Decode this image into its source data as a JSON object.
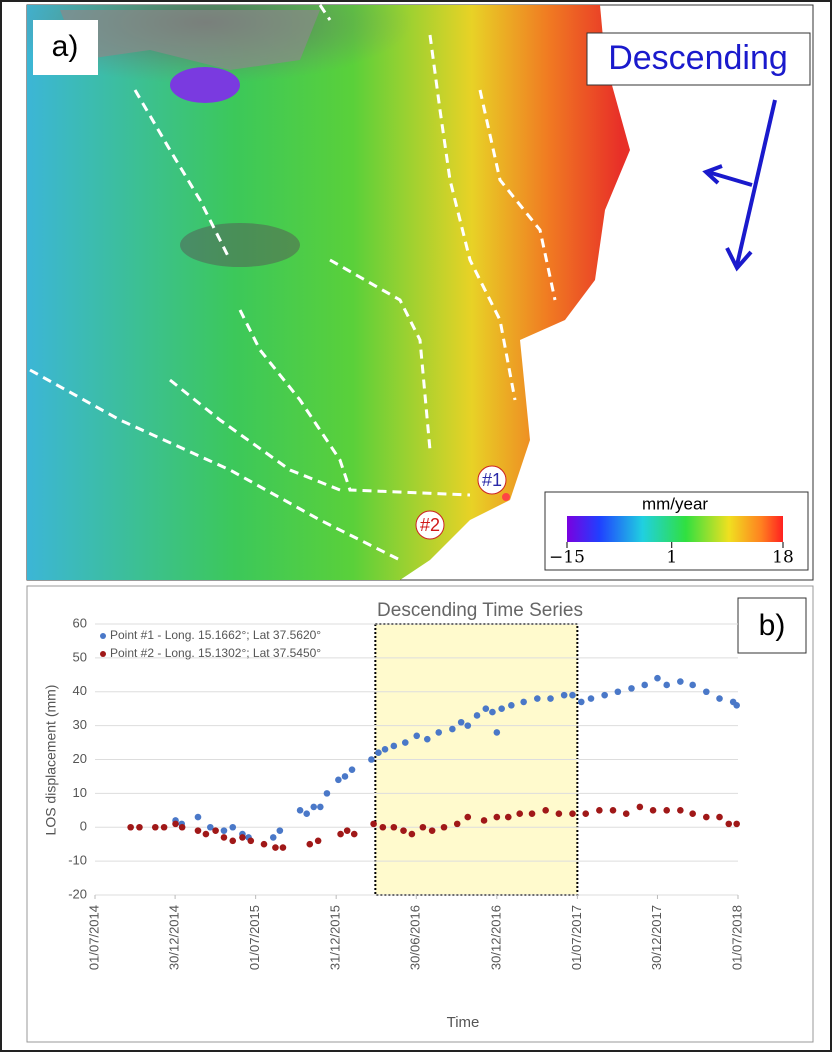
{
  "map": {
    "label": "a)",
    "orbit": "Descending",
    "points": [
      "#1",
      "#2"
    ],
    "colorbar": {
      "title": "mm/year",
      "lim": [
        -15,
        18
      ],
      "ticks": [
        {
          "value": -15,
          "label": "−15"
        },
        1,
        18
      ]
    }
  },
  "chart_data": {
    "type": "scatter",
    "title": "Descending Time Series",
    "panel_label": "b)",
    "x_label": "Time",
    "y_label": "LOS displacement (mm)",
    "xlim": [
      "2014-07-01",
      "2018-07-01"
    ],
    "xticks": [
      {
        "value": "2014-07-01",
        "label": "01/07/2014"
      },
      {
        "value": "2014-12-30",
        "label": "30/12/2014"
      },
      {
        "value": "2015-07-01",
        "label": "01/07/2015"
      },
      {
        "value": "2015-12-31",
        "label": "31/12/2015"
      },
      {
        "value": "2016-06-30",
        "label": "30/06/2016"
      },
      {
        "value": "2016-12-30",
        "label": "30/12/2016"
      },
      {
        "value": "2017-07-01",
        "label": "01/07/2017"
      },
      {
        "value": "2017-12-30",
        "label": "30/12/2017"
      },
      {
        "value": "2018-07-01",
        "label": "01/07/2018"
      }
    ],
    "ylim": [
      -20,
      60
    ],
    "yticks": [
      -20,
      -10,
      0,
      10,
      20,
      30,
      40,
      50,
      60
    ],
    "grid": true,
    "highlight": [
      "2016-03-29",
      "2017-07-01"
    ],
    "highlight_color": "#fffacd",
    "legend": "upper left",
    "series": [
      {
        "name": "Point #1 - Long. 15.1662°; Lat 37.5620°",
        "color": "#4a78c8",
        "x": [
          "2014-12-31",
          "2015-01-14",
          "2015-02-20",
          "2015-03-20",
          "2015-04-20",
          "2015-05-10",
          "2015-06-01",
          "2015-06-15",
          "2015-08-10",
          "2015-08-25",
          "2015-10-10",
          "2015-10-25",
          "2015-11-10",
          "2015-11-25",
          "2015-12-10",
          "2016-01-05",
          "2016-01-20",
          "2016-02-05",
          "2016-03-20",
          "2016-04-05",
          "2016-04-20",
          "2016-05-10",
          "2016-06-05",
          "2016-07-01",
          "2016-07-25",
          "2016-08-20",
          "2016-09-20",
          "2016-10-10",
          "2016-10-25",
          "2016-11-15",
          "2016-12-05",
          "2016-12-20",
          "2016-12-30",
          "2017-01-10",
          "2017-02-01",
          "2017-03-01",
          "2017-04-01",
          "2017-05-01",
          "2017-06-01",
          "2017-06-20",
          "2017-07-10",
          "2017-08-01",
          "2017-09-01",
          "2017-10-01",
          "2017-11-01",
          "2017-12-01",
          "2017-12-30",
          "2018-01-20",
          "2018-02-20",
          "2018-03-20",
          "2018-04-20",
          "2018-05-20",
          "2018-06-20",
          "2018-06-28"
        ],
        "values": [
          2,
          1,
          3,
          0,
          -1,
          0,
          -2,
          -3,
          -3,
          -1,
          5,
          4,
          6,
          6,
          10,
          14,
          15,
          17,
          20,
          22,
          23,
          24,
          25,
          27,
          26,
          28,
          29,
          31,
          30,
          33,
          35,
          34,
          28,
          35,
          36,
          37,
          38,
          38,
          39,
          39,
          37,
          38,
          39,
          40,
          41,
          42,
          44,
          42,
          43,
          42,
          40,
          38,
          37,
          36
        ]
      },
      {
        "name": "Point #2 - Long. 15.1302°; Lat 37.5450°",
        "color": "#a01818",
        "x": [
          "2014-09-20",
          "2014-10-10",
          "2014-11-15",
          "2014-12-05",
          "2014-12-31",
          "2015-01-15",
          "2015-02-20",
          "2015-03-10",
          "2015-04-01",
          "2015-04-20",
          "2015-05-10",
          "2015-06-01",
          "2015-06-20",
          "2015-07-20",
          "2015-08-15",
          "2015-09-01",
          "2015-11-01",
          "2015-11-20",
          "2016-01-10",
          "2016-01-25",
          "2016-02-10",
          "2016-03-25",
          "2016-04-15",
          "2016-05-10",
          "2016-06-01",
          "2016-06-20",
          "2016-07-15",
          "2016-08-05",
          "2016-09-01",
          "2016-10-01",
          "2016-10-25",
          "2016-12-01",
          "2016-12-30",
          "2017-01-25",
          "2017-02-20",
          "2017-03-20",
          "2017-04-20",
          "2017-05-20",
          "2017-06-20",
          "2017-07-20",
          "2017-08-20",
          "2017-09-20",
          "2017-10-20",
          "2017-11-20",
          "2017-12-20",
          "2018-01-20",
          "2018-02-20",
          "2018-03-20",
          "2018-04-20",
          "2018-05-20",
          "2018-06-10",
          "2018-06-28"
        ],
        "values": [
          0,
          0,
          0,
          0,
          1,
          0,
          -1,
          -2,
          -1,
          -3,
          -4,
          -3,
          -4,
          -5,
          -6,
          -6,
          -5,
          -4,
          -2,
          -1,
          -2,
          1,
          0,
          0,
          -1,
          -2,
          0,
          -1,
          0,
          1,
          3,
          2,
          3,
          3,
          4,
          4,
          5,
          4,
          4,
          4,
          5,
          5,
          4,
          6,
          5,
          5,
          5,
          4,
          3,
          3,
          1,
          1
        ]
      }
    ]
  }
}
